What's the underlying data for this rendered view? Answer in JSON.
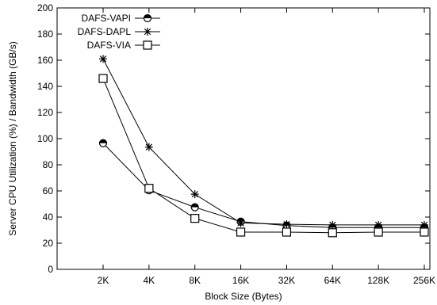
{
  "chart_data": {
    "type": "line",
    "title": "",
    "xlabel": "Block Size (Bytes)",
    "ylabel": "Server CPU Utilization (%) / Bandwidth (GB/s)",
    "categories": [
      "2K",
      "4K",
      "8K",
      "16K",
      "32K",
      "64K",
      "128K",
      "256K"
    ],
    "ylim": [
      0,
      200
    ],
    "yticks": [
      0,
      20,
      40,
      60,
      80,
      100,
      120,
      140,
      160,
      180,
      200
    ],
    "grid": false,
    "legend_position": "top-left",
    "series": [
      {
        "name": "DAFS-VAPI",
        "marker": "half-circle",
        "values": [
          96.5,
          60.5,
          47.5,
          36.5,
          33.5,
          32,
          32,
          32
        ]
      },
      {
        "name": "DAFS-DAPL",
        "marker": "asterisk",
        "values": [
          161,
          93.5,
          57.5,
          35.5,
          34.5,
          34,
          34,
          34
        ]
      },
      {
        "name": "DAFS-VIA",
        "marker": "square",
        "values": [
          146,
          62,
          39,
          28.5,
          28.5,
          28,
          28.5,
          28.5
        ]
      }
    ]
  }
}
